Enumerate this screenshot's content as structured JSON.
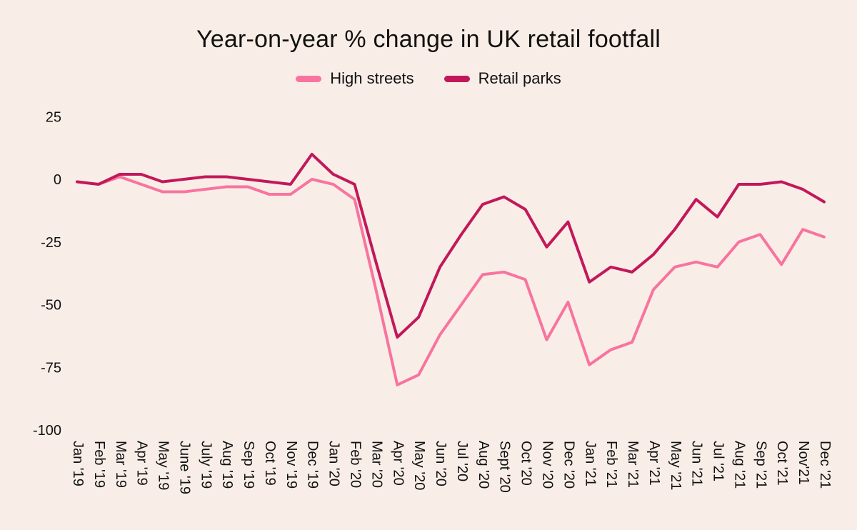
{
  "page": {
    "background": "#f9eee7"
  },
  "chart_data": {
    "type": "line",
    "title": "Year-on-year % change in UK retail footfall",
    "categories": [
      "Jan '19",
      "Feb '19",
      "Mar '19",
      "Apr '19",
      "May '19",
      "June '19",
      "July '19",
      "Aug '19",
      "Sep '19",
      "Oct '19",
      "Nov '19",
      "Dec '19",
      "Jan '20",
      "Feb '20",
      "Mar '20",
      "Apr '20",
      "May '20",
      "Jun '20",
      "Jul '20",
      "Aug '20",
      "Sept '20",
      "Oct '20",
      "Nov '20",
      "Dec '20",
      "Jan '21",
      "Feb '21",
      "Mar '21",
      "Apr '21",
      "May '21",
      "Jun '21",
      "Jul '21",
      "Aug '21",
      "Sep '21",
      "Oct '21",
      "Nov'21",
      "Dec '21"
    ],
    "series": [
      {
        "name": "High streets",
        "color": "#f8749f",
        "values": [
          -1,
          -2,
          1,
          -2,
          -5,
          -5,
          -4,
          -3,
          -3,
          -6,
          -6,
          0,
          -2,
          -8,
          -44,
          -82,
          -78,
          -62,
          -50,
          -38,
          -37,
          -40,
          -64,
          -49,
          -74,
          -68,
          -65,
          -44,
          -35,
          -33,
          -35,
          -25,
          -22,
          -34,
          -20,
          -23
        ]
      },
      {
        "name": "Retail parks",
        "color": "#c2185b",
        "values": [
          -1,
          -2,
          2,
          2,
          -1,
          0,
          1,
          1,
          0,
          -1,
          -2,
          10,
          2,
          -2,
          -33,
          -63,
          -55,
          -35,
          -22,
          -10,
          -7,
          -12,
          -27,
          -17,
          -41,
          -35,
          -37,
          -30,
          -20,
          -8,
          -15,
          -2,
          -2,
          -1,
          -4,
          -9
        ]
      }
    ],
    "ylim": [
      -100,
      25
    ],
    "yticks": [
      25,
      0,
      -25,
      -50,
      -75,
      -100
    ],
    "grid": false,
    "legend_position": "top",
    "x_label_rotation": 90
  }
}
